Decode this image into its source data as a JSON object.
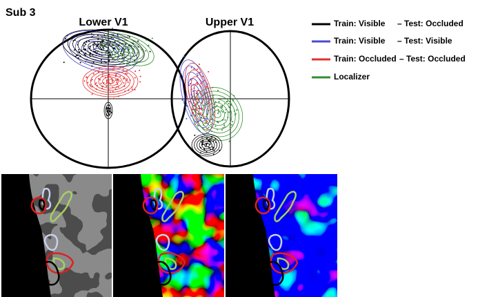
{
  "label": "Sub 3",
  "panels": [
    {
      "title": "Lower V1"
    },
    {
      "title": "Upper V1"
    }
  ],
  "legend": [
    {
      "train": "Train: Visible",
      "test": "– Test: Occluded",
      "color": "#000000"
    },
    {
      "train": "Train: Visible",
      "test": "– Test: Visible",
      "color": "#4a4ad0"
    },
    {
      "train": "Train: Occluded",
      "test": "– Test: Occluded",
      "color": "#e03030"
    },
    {
      "train": "Localizer",
      "color": "#2f8f2f"
    }
  ]
}
